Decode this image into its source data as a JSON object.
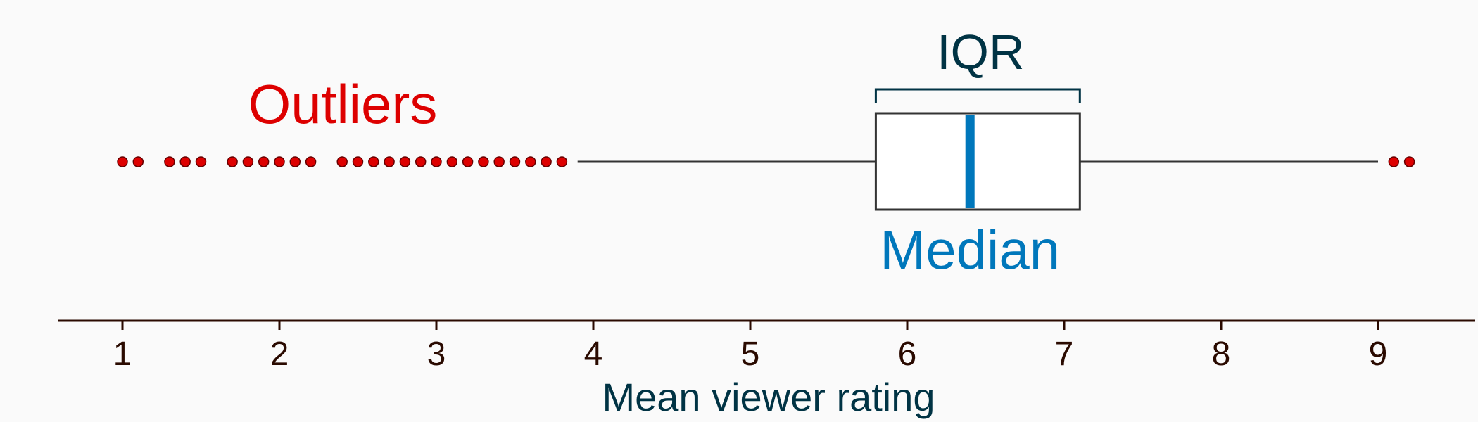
{
  "chart_data": {
    "type": "boxplot",
    "orientation": "horizontal",
    "xlabel": "Mean viewer rating",
    "xlim": [
      0.4,
      9.6
    ],
    "ticks": [
      1,
      2,
      3,
      4,
      5,
      6,
      7,
      8,
      9
    ],
    "tick_labels": [
      "1",
      "2",
      "3",
      "4",
      "5",
      "6",
      "7",
      "8",
      "9"
    ],
    "box": {
      "q1": 5.8,
      "median": 6.4,
      "q3": 7.1,
      "whisker_low": 3.9,
      "whisker_high": 9.0
    },
    "outliers": [
      1.0,
      1.1,
      1.3,
      1.4,
      1.5,
      1.7,
      1.8,
      1.9,
      2.0,
      2.1,
      2.2,
      2.4,
      2.5,
      2.6,
      2.7,
      2.8,
      2.9,
      3.0,
      3.1,
      3.2,
      3.3,
      3.4,
      3.5,
      3.6,
      3.7,
      3.8,
      9.1,
      9.2
    ],
    "annotations": {
      "outliers": "Outliers",
      "iqr": "IQR",
      "median": "Median"
    },
    "colors": {
      "outlier": "#dd0000",
      "median": "#0077bb",
      "iqr": "#003344",
      "axis": "#2a0a00",
      "xlabel": "#003344",
      "box": "#333333"
    }
  }
}
